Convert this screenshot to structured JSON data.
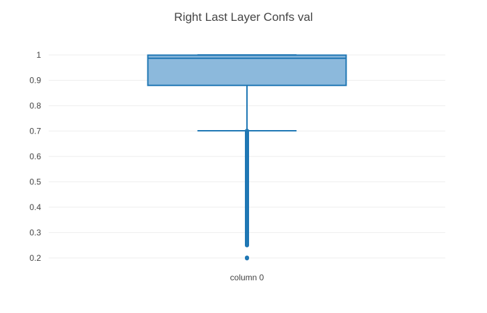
{
  "chart_data": {
    "type": "box",
    "title": "Right Last Layer Confs val",
    "xlabel": "",
    "ylabel": "",
    "ylim": [
      0.175,
      1.03
    ],
    "yticks": [
      0.2,
      0.3,
      0.4,
      0.5,
      0.6,
      0.7,
      0.8,
      0.9,
      1
    ],
    "ytick_labels": [
      "0.2",
      "0.3",
      "0.4",
      "0.5",
      "0.6",
      "0.7",
      "0.8",
      "0.9",
      "1"
    ],
    "grid": true,
    "categories": [
      "column 0"
    ],
    "boxes": [
      {
        "category": "column 0",
        "whisker_low": 0.701,
        "q1": 0.88,
        "median": 0.987,
        "q3": 0.999,
        "whisker_high": 1.0,
        "outlier_range": [
          0.25,
          0.701
        ],
        "outliers_isolated": [
          0.2
        ],
        "color": "#1f77b4",
        "fill": "#8cb9dc"
      }
    ]
  }
}
